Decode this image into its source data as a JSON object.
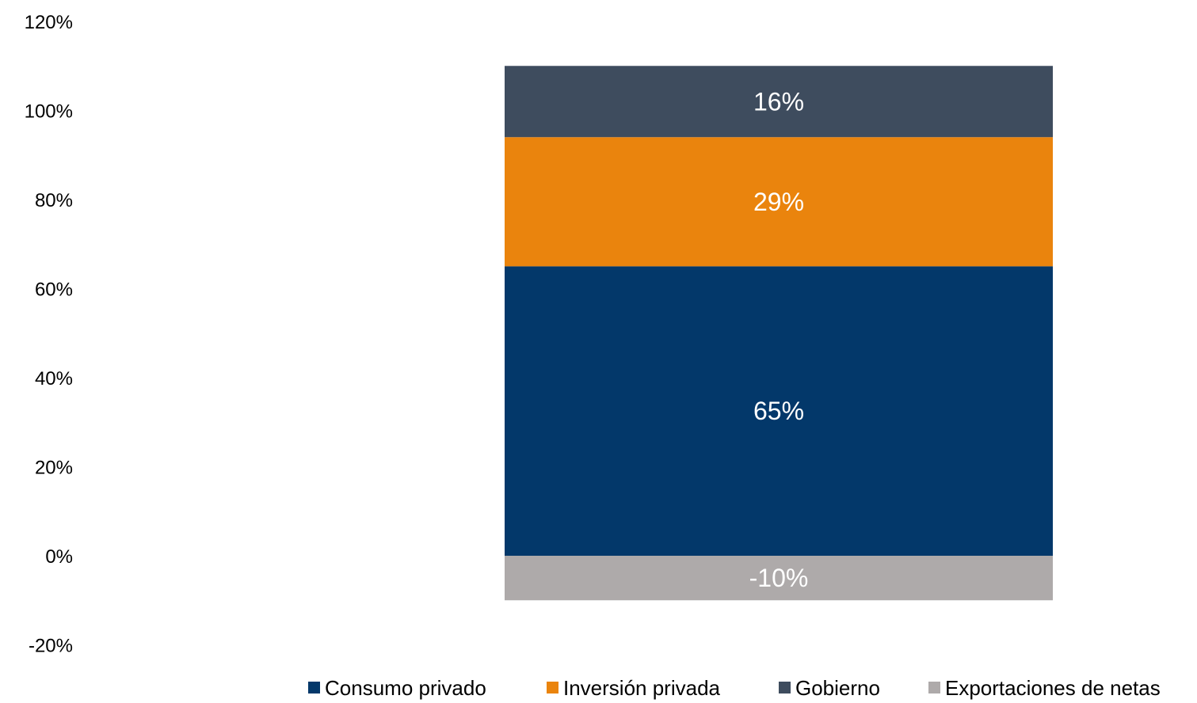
{
  "chart_data": {
    "type": "bar",
    "stacked": true,
    "categories": [
      ""
    ],
    "series": [
      {
        "name": "Consumo privado",
        "values": [
          65
        ],
        "label": "65%",
        "color": "#03386a"
      },
      {
        "name": "Inversión privada",
        "values": [
          29
        ],
        "label": "29%",
        "color": "#ea840d"
      },
      {
        "name": "Gobierno",
        "values": [
          16
        ],
        "label": "16%",
        "color": "#3e4c5e"
      },
      {
        "name": "Exportaciones de netas",
        "values": [
          -10
        ],
        "label": "-10%",
        "color": "#aeaaaa"
      }
    ],
    "ylim": [
      -20,
      120
    ],
    "yticks": [
      {
        "value": -20,
        "label": "-20%"
      },
      {
        "value": 0,
        "label": "0%"
      },
      {
        "value": 20,
        "label": "20%"
      },
      {
        "value": 40,
        "label": "40%"
      },
      {
        "value": 60,
        "label": "60%"
      },
      {
        "value": 80,
        "label": "80%"
      },
      {
        "value": 100,
        "label": "100%"
      },
      {
        "value": 120,
        "label": "120%"
      }
    ],
    "grid": false,
    "legend_position": "bottom"
  }
}
